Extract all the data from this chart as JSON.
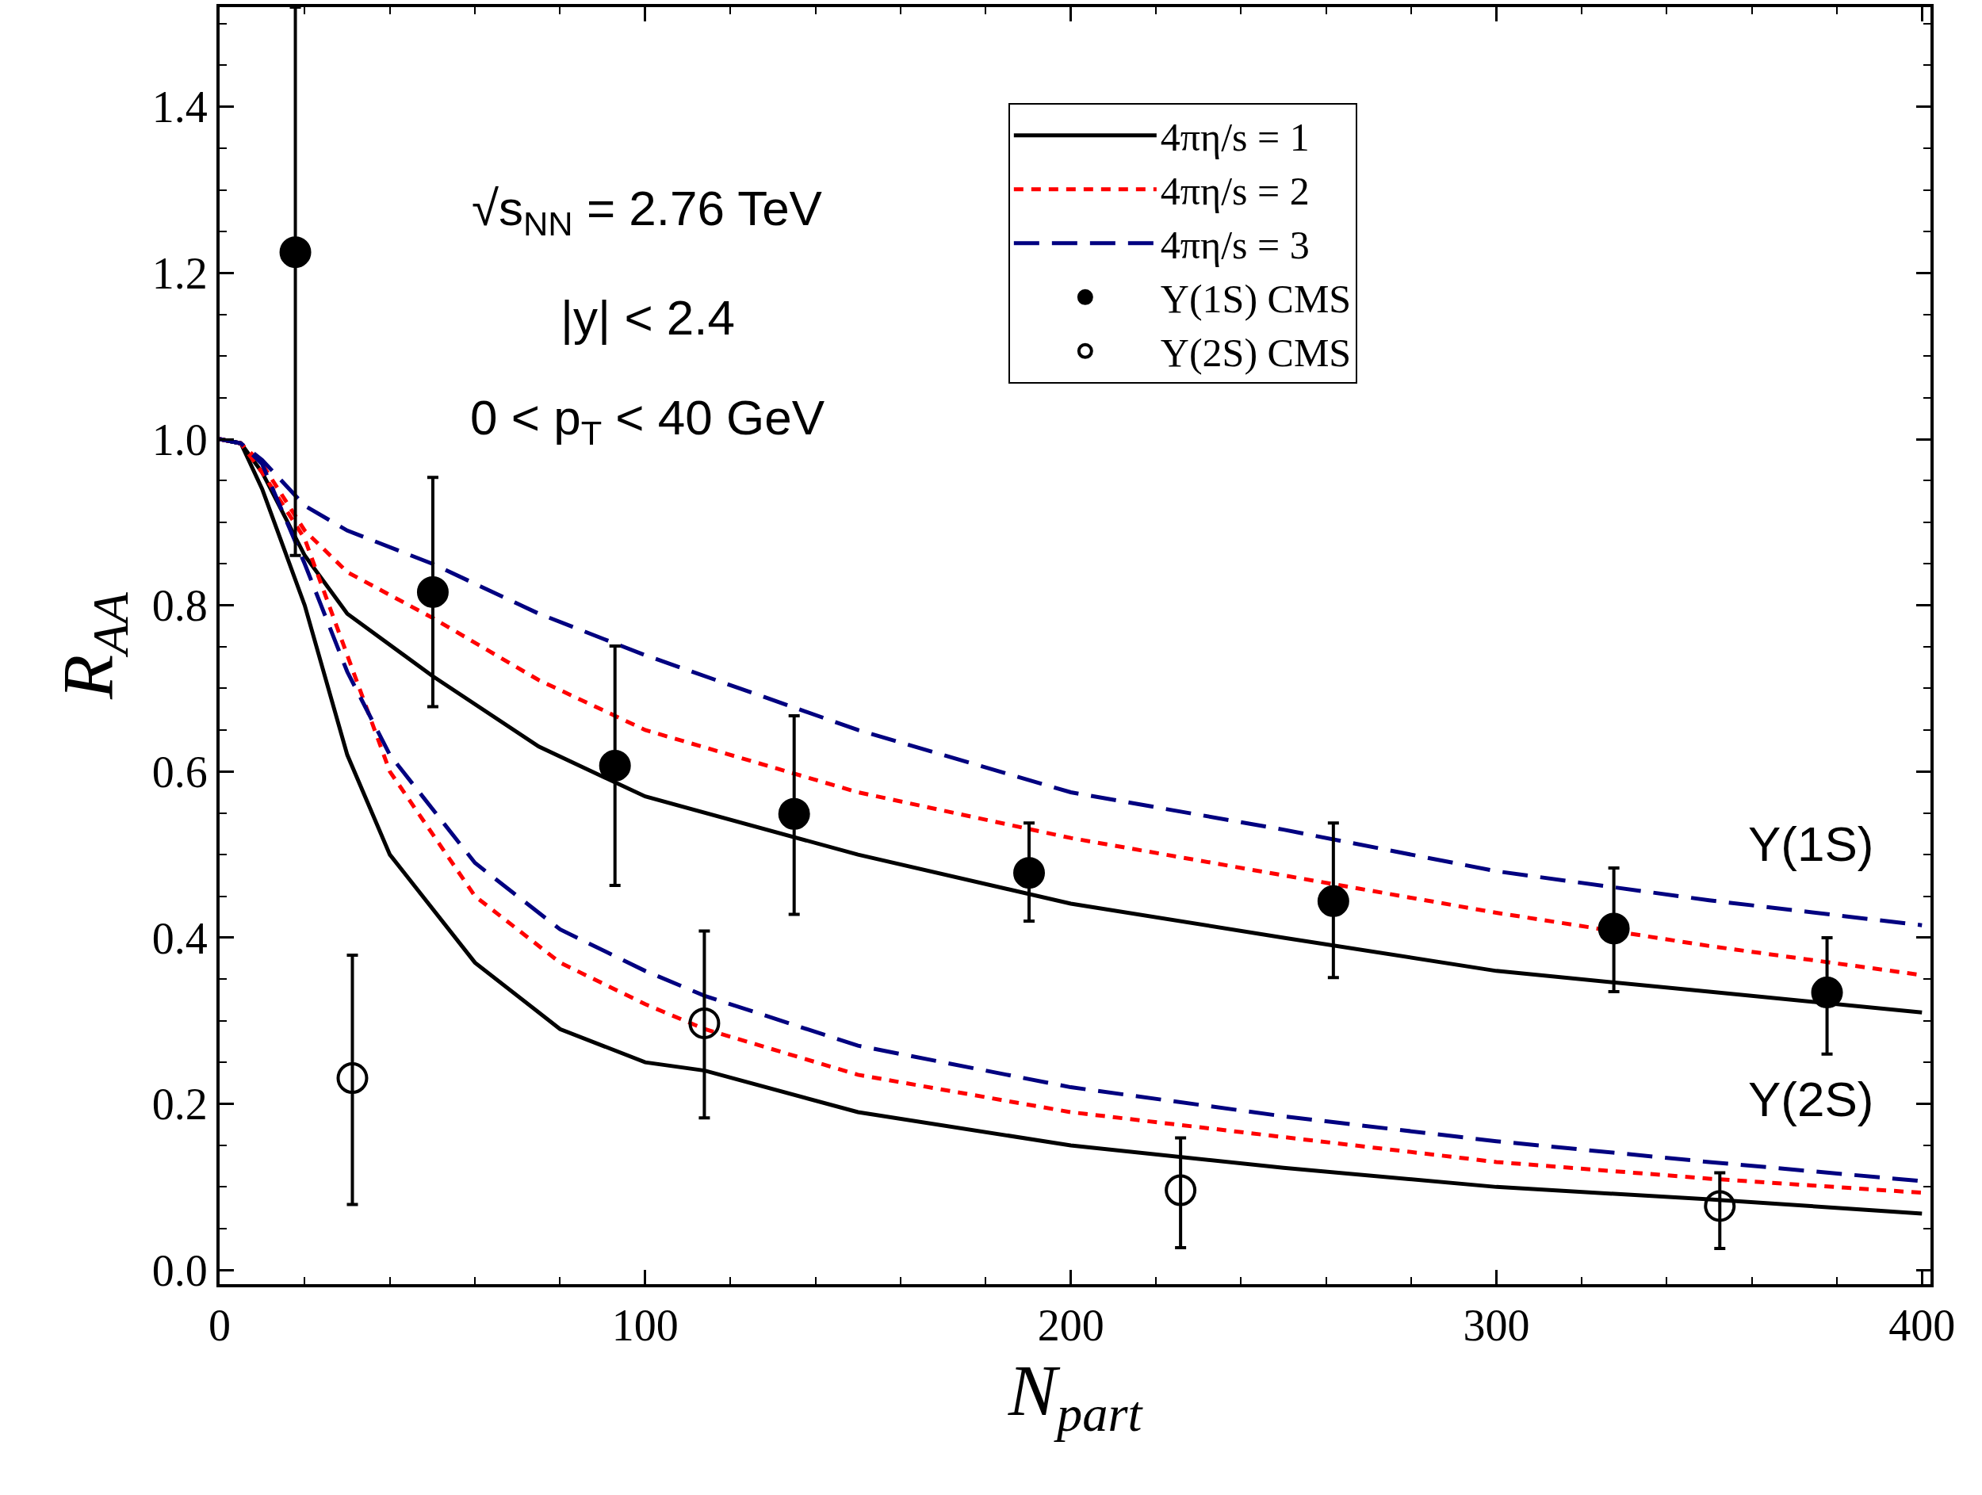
{
  "chart_data": {
    "type": "line",
    "xlabel": "N$_{part}$",
    "ylabel": "R$_{AA}$",
    "xlim": [
      0,
      402
    ],
    "ylim": [
      -0.017,
      1.52
    ],
    "xticks": [
      0,
      100,
      200,
      300,
      400
    ],
    "yticks": [
      {
        "value": 0,
        "label": "0.0"
      },
      0.2,
      0.4,
      0.6,
      0.8,
      {
        "value": 1,
        "label": "1.0"
      },
      1.2,
      1.4
    ],
    "legend": "top right",
    "annotations": [
      "√s$_{NN}$ = 2.76 TeV",
      "|y| < 2.4",
      "0 < p$_{T}$ < 40 GeV",
      "Υ(1S)",
      "Υ(2S)"
    ],
    "series": [
      {
        "name": "4πη/s = 1",
        "color": "#000000",
        "line_style": "solid",
        "marker": "none",
        "x": [
          0,
          5,
          10,
          20,
          30,
          50,
          75,
          100,
          150,
          200,
          250,
          300,
          350,
          400
        ],
        "values": [
          1,
          0.995,
          0.96,
          0.86,
          0.79,
          0.715,
          0.63,
          0.57,
          0.5,
          0.441,
          0.4,
          0.36,
          0.335,
          0.31
        ]
      },
      {
        "name": "4πη/s = 2",
        "color": "#ff0000",
        "line_style": "dotted",
        "marker": "none",
        "x": [
          0,
          5,
          10,
          20,
          30,
          50,
          75,
          100,
          150,
          200,
          250,
          300,
          350,
          400
        ],
        "values": [
          1,
          0.995,
          0.97,
          0.89,
          0.84,
          0.785,
          0.71,
          0.65,
          0.575,
          0.52,
          0.475,
          0.43,
          0.39,
          0.355
        ]
      },
      {
        "name": "4πη/s = 3",
        "color": "#000080",
        "line_style": "dashed",
        "marker": "none",
        "x": [
          0,
          5,
          10,
          20,
          30,
          50,
          75,
          100,
          150,
          200,
          250,
          300,
          350,
          400
        ],
        "values": [
          1,
          0.995,
          0.975,
          0.92,
          0.89,
          0.85,
          0.79,
          0.74,
          0.65,
          0.575,
          0.53,
          0.48,
          0.445,
          0.415
        ]
      },
      {
        "color": "#000000",
        "line_style": "solid",
        "marker": "none",
        "x": [
          0,
          5,
          10,
          20,
          30,
          40,
          60,
          80,
          100,
          114,
          150,
          200,
          250,
          300,
          350,
          400
        ],
        "values": [
          1,
          0.995,
          0.94,
          0.8,
          0.62,
          0.5,
          0.37,
          0.29,
          0.25,
          0.24,
          0.19,
          0.15,
          0.123,
          0.1,
          0.085,
          0.068
        ]
      },
      {
        "color": "#ff0000",
        "line_style": "dotted",
        "marker": "none",
        "x": [
          0,
          5,
          10,
          20,
          30,
          40,
          60,
          80,
          100,
          114,
          150,
          200,
          250,
          300,
          350,
          400
        ],
        "values": [
          1,
          0.995,
          0.96,
          0.88,
          0.74,
          0.6,
          0.45,
          0.37,
          0.32,
          0.29,
          0.235,
          0.19,
          0.16,
          0.13,
          0.11,
          0.093
        ]
      },
      {
        "color": "#000080",
        "line_style": "dashed",
        "marker": "none",
        "x": [
          0,
          5,
          10,
          20,
          30,
          40,
          60,
          80,
          100,
          114,
          150,
          200,
          250,
          300,
          350,
          400
        ],
        "values": [
          1,
          0.995,
          0.97,
          0.85,
          0.72,
          0.62,
          0.49,
          0.41,
          0.36,
          0.33,
          0.27,
          0.22,
          0.185,
          0.155,
          0.13,
          0.107
        ]
      },
      {
        "name": "Υ(1S) CMS",
        "type": "scatter",
        "color": "#000000",
        "marker": "circle",
        "x": [
          17.8,
          50.1,
          92.9,
          135,
          190.2,
          261.7,
          327.6,
          377.7
        ],
        "values": [
          1.225,
          0.816,
          0.607,
          0.549,
          0.478,
          0.444,
          0.411,
          0.334
        ],
        "errors": [
          [
            0.86,
            1.52
          ],
          [
            0.678,
            0.954
          ],
          [
            0.463,
            0.751
          ],
          [
            0.428,
            0.667
          ],
          [
            0.42,
            0.538
          ],
          [
            0.352,
            0.538
          ],
          [
            0.335,
            0.484
          ],
          [
            0.26,
            0.4
          ]
        ]
      },
      {
        "name": "Υ(2S) CMS",
        "type": "scatter",
        "color": "#000000",
        "marker": "circle-open",
        "x": [
          31.2,
          113.9,
          225.8,
          352.5
        ],
        "values": [
          0.231,
          0.297,
          0.096,
          0.077
        ],
        "errors": [
          [
            0.079,
            0.379
          ],
          [
            0.183,
            0.408
          ],
          [
            0.027,
            0.159
          ],
          [
            0.026,
            0.117
          ]
        ]
      }
    ]
  }
}
